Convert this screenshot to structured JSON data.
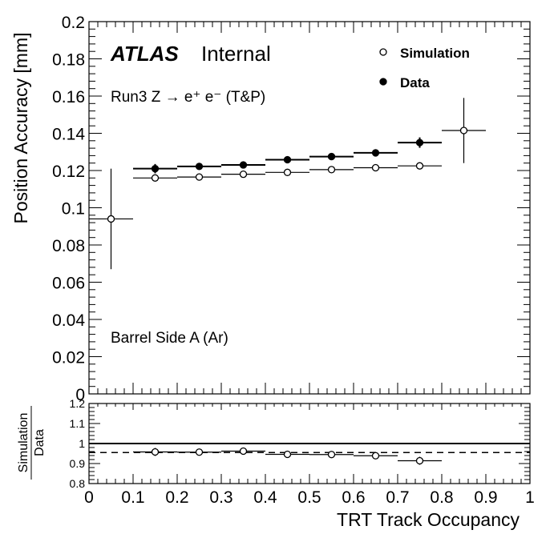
{
  "figure": {
    "atlas_label": "ATLAS",
    "atlas_suffix": "Internal",
    "run_label": "Run3 Z → e⁺ e⁻ (T&P)",
    "region_label": "Barrel Side A (Ar)"
  },
  "chart_data": [
    {
      "type": "scatter",
      "xlabel": "",
      "ylabel": "Position Accuracy [mm]",
      "xlim": [
        0,
        1
      ],
      "ylim": [
        0,
        0.2
      ],
      "x_ticks": [
        0,
        0.1,
        0.2,
        0.3,
        0.4,
        0.5,
        0.6,
        0.7,
        0.8,
        0.9,
        1
      ],
      "y_ticks": [
        0,
        0.02,
        0.04,
        0.06,
        0.08,
        0.1,
        0.12,
        0.14,
        0.16,
        0.18,
        0.2
      ],
      "y_tick_labels": [
        "0",
        "0.02",
        "0.04",
        "0.06",
        "0.08",
        "0.1",
        "0.12",
        "0.14",
        "0.16",
        "0.18",
        "0.2"
      ],
      "legend_position": "top-right",
      "series": [
        {
          "name": "Simulation",
          "marker": "open-circle",
          "color": "#000000",
          "x": [
            0.05,
            0.15,
            0.25,
            0.35,
            0.45,
            0.55,
            0.65,
            0.75,
            0.85
          ],
          "x_bin_halfwidth": 0.05,
          "values": [
            0.094,
            0.116,
            0.1165,
            0.118,
            0.119,
            0.1205,
            0.1215,
            0.1225,
            0.1415
          ],
          "y_err": [
            0.027,
            0.001,
            0.001,
            0.001,
            0.001,
            0.001,
            0.001,
            0.001,
            0.0175
          ]
        },
        {
          "name": "Data",
          "marker": "filled-circle",
          "color": "#000000",
          "x": [
            0.15,
            0.25,
            0.35,
            0.45,
            0.55,
            0.65,
            0.75
          ],
          "x_bin_halfwidth": 0.05,
          "values": [
            0.121,
            0.1222,
            0.123,
            0.1258,
            0.1275,
            0.1295,
            0.135
          ],
          "y_err": [
            0.0025,
            0.0012,
            0.0012,
            0.0012,
            0.0012,
            0.0012,
            0.0028
          ]
        }
      ]
    },
    {
      "type": "scatter",
      "xlabel": "TRT Track Occupancy",
      "ylabel_numerator": "Simulation",
      "ylabel_denominator": "Data",
      "xlim": [
        0,
        1
      ],
      "ylim": [
        0.8,
        1.2
      ],
      "x_ticks": [
        0,
        0.1,
        0.2,
        0.3,
        0.4,
        0.5,
        0.6,
        0.7,
        0.8,
        0.9,
        1
      ],
      "x_tick_labels": [
        "0",
        "0.1",
        "0.2",
        "0.3",
        "0.4",
        "0.5",
        "0.6",
        "0.7",
        "0.8",
        "0.9",
        "1"
      ],
      "y_ticks": [
        0.8,
        0.9,
        1,
        1.1,
        1.2
      ],
      "y_tick_labels": [
        "0.8",
        "0.9",
        "1",
        "1.1",
        "1.2"
      ],
      "reference_lines": [
        {
          "y": 1.0,
          "style": "solid"
        },
        {
          "y": 0.955,
          "style": "dashed"
        }
      ],
      "series": [
        {
          "name": "",
          "marker": "open-circle",
          "color": "#000000",
          "x": [
            0.15,
            0.25,
            0.35,
            0.45,
            0.55,
            0.65,
            0.75
          ],
          "x_bin_halfwidth": 0.05,
          "values": [
            0.958,
            0.957,
            0.962,
            0.946,
            0.945,
            0.939,
            0.914
          ],
          "y_err": [
            0.02,
            0.008,
            0.008,
            0.008,
            0.008,
            0.008,
            0.02
          ]
        }
      ]
    }
  ]
}
